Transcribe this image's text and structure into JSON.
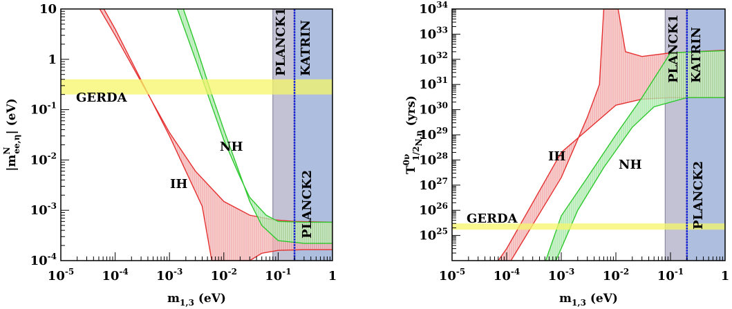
{
  "chart_data": [
    {
      "type": "area",
      "log_x": true,
      "log_y": true,
      "xlim": [
        1e-05,
        1
      ],
      "ylim": [
        0.0001,
        10
      ],
      "xlabel_main": "m",
      "xlabel_sub": "1,3",
      "xlabel_unit": " (eV)",
      "ylabel_main": "|m",
      "ylabel_sup": "N",
      "ylabel_sub": "ee,η",
      "ylabel_unit": "| (eV)",
      "x_ticks": [
        {
          "v": 1e-05,
          "base": "10",
          "exp": "-5"
        },
        {
          "v": 0.0001,
          "base": "10",
          "exp": "-4"
        },
        {
          "v": 0.001,
          "base": "10",
          "exp": "-3"
        },
        {
          "v": 0.01,
          "base": "10",
          "exp": "-2"
        },
        {
          "v": 0.1,
          "base": "10",
          "exp": "-1"
        },
        {
          "v": 1,
          "base": "1",
          "exp": ""
        }
      ],
      "y_ticks": [
        {
          "v": 0.0001,
          "base": "10",
          "exp": "-4"
        },
        {
          "v": 0.001,
          "base": "10",
          "exp": "-3"
        },
        {
          "v": 0.01,
          "base": "10",
          "exp": "-2"
        },
        {
          "v": 0.1,
          "base": "10",
          "exp": "-1"
        },
        {
          "v": 1,
          "base": "1",
          "exp": ""
        },
        {
          "v": 10,
          "base": "10",
          "exp": ""
        }
      ],
      "series": [
        {
          "name": "IH",
          "color": "#e53030",
          "fill": "#f2a3a3",
          "upper": [
            [
              5.2e-05,
              10
            ],
            [
              0.0001,
              3
            ],
            [
              0.001,
              0.035
            ],
            [
              0.003,
              0.006
            ],
            [
              0.01,
              0.0015
            ],
            [
              0.03,
              0.0008
            ],
            [
              0.08,
              0.00065
            ],
            [
              0.2,
              0.0006
            ],
            [
              1,
              0.00058
            ]
          ],
          "lower": [
            [
              6.2e-05,
              10
            ],
            [
              0.0001,
              4
            ],
            [
              0.001,
              0.03
            ],
            [
              0.002,
              0.006
            ],
            [
              0.004,
              0.0012
            ],
            [
              0.006,
              0.0001
            ],
            [
              0.03,
              0.0001
            ],
            [
              0.05,
              0.00014
            ],
            [
              0.1,
              0.00016
            ],
            [
              0.3,
              0.000165
            ],
            [
              1,
              0.000165
            ]
          ]
        },
        {
          "name": "NH",
          "color": "#2ec82e",
          "fill": "#a0e6a0",
          "upper": [
            [
              0.0014,
              10
            ],
            [
              0.003,
              1
            ],
            [
              0.01,
              0.025
            ],
            [
              0.02,
              0.0045
            ],
            [
              0.03,
              0.0018
            ],
            [
              0.06,
              0.0008
            ],
            [
              0.1,
              0.0006
            ],
            [
              0.3,
              0.00058
            ],
            [
              1,
              0.00058
            ]
          ],
          "lower": [
            [
              0.0018,
              10
            ],
            [
              0.003,
              2
            ],
            [
              0.006,
              0.2
            ],
            [
              0.01,
              0.04
            ],
            [
              0.03,
              0.0015
            ],
            [
              0.05,
              0.0005
            ],
            [
              0.1,
              0.00025
            ],
            [
              0.3,
              0.00022
            ],
            [
              1,
              0.00022
            ]
          ]
        }
      ],
      "bands": [
        {
          "name": "GERDA",
          "orientation": "horizontal",
          "range": [
            0.2,
            0.4
          ],
          "color": "#f5f56a"
        },
        {
          "name": "PLANCK1",
          "orientation": "vertical",
          "range": [
            0.08,
            1
          ],
          "color": "#b7b7cc"
        },
        {
          "name": "PLANCK2",
          "orientation": "vertical",
          "range": [
            0.2,
            1
          ],
          "color": "#a9bde0"
        },
        {
          "name": "KATRIN",
          "orientation": "vertical-line",
          "value": 0.2,
          "color": "#1e2ad6"
        }
      ],
      "labels": {
        "gerda": "GERDA",
        "planck1": "PLANCK1",
        "katrin": "KATRIN",
        "planck2": "PLANCK2",
        "ih": "IH",
        "nh": "NH"
      }
    },
    {
      "type": "area",
      "log_x": true,
      "log_y": true,
      "xlim": [
        1e-05,
        1
      ],
      "ylim": [
        1e+24,
        1e+34
      ],
      "xlabel_main": "m",
      "xlabel_sub": "1,3",
      "xlabel_unit": " (eV)",
      "ylabel_main": "T",
      "ylabel_sup": "0ν",
      "ylabel_sub": "1/2",
      "ylabel_sub2": "N,η",
      "ylabel_unit": " (yrs)",
      "x_ticks": [
        {
          "v": 1e-05,
          "base": "10",
          "exp": "-5"
        },
        {
          "v": 0.0001,
          "base": "10",
          "exp": "-4"
        },
        {
          "v": 0.001,
          "base": "10",
          "exp": "-3"
        },
        {
          "v": 0.01,
          "base": "10",
          "exp": "-2"
        },
        {
          "v": 0.1,
          "base": "10",
          "exp": "-1"
        },
        {
          "v": 1,
          "base": "1",
          "exp": ""
        }
      ],
      "y_ticks": [
        {
          "v": 1e+25,
          "base": "10",
          "exp": "25"
        },
        {
          "v": 1e+26,
          "base": "10",
          "exp": "26"
        },
        {
          "v": 1e+27,
          "base": "10",
          "exp": "27"
        },
        {
          "v": 1e+28,
          "base": "10",
          "exp": "28"
        },
        {
          "v": 1e+29,
          "base": "10",
          "exp": "29"
        },
        {
          "v": 1e+30,
          "base": "10",
          "exp": "30"
        },
        {
          "v": 1e+31,
          "base": "10",
          "exp": "31"
        },
        {
          "v": 1e+32,
          "base": "10",
          "exp": "32"
        },
        {
          "v": 1e+33,
          "base": "10",
          "exp": "33"
        },
        {
          "v": 1e+34,
          "base": "10",
          "exp": "34"
        }
      ],
      "series": [
        {
          "name": "IH",
          "color": "#e53030",
          "fill": "#f2a3a3",
          "upper": [
            [
              0.00012,
              1e+24
            ],
            [
              0.001,
              2e+27
            ],
            [
              0.003,
              5e+29
            ],
            [
              0.005,
              1e+31
            ],
            [
              0.006,
              1e+34
            ],
            [
              0.011,
              1e+34
            ],
            [
              0.015,
              2e+32
            ],
            [
              0.03,
              1.3e+32
            ],
            [
              0.1,
              1.8e+32
            ],
            [
              1,
              2.3e+32
            ]
          ],
          "lower": [
            [
              7e-05,
              1e+24
            ],
            [
              0.0001,
              3e+24
            ],
            [
              0.001,
              2e+28
            ],
            [
              0.01,
              1.5e+30
            ],
            [
              0.03,
              2.6e+30
            ],
            [
              0.1,
              3e+30
            ],
            [
              1,
              3e+30
            ]
          ]
        },
        {
          "name": "NH",
          "color": "#2ec82e",
          "fill": "#a0e6a0",
          "upper": [
            [
              0.00052,
              1e+24
            ],
            [
              0.001,
              6e+25
            ],
            [
              0.003,
              2e+27
            ],
            [
              0.01,
              1e+29
            ],
            [
              0.03,
              3e+30
            ],
            [
              0.1,
              1.8e+32
            ],
            [
              0.3,
              2e+32
            ],
            [
              1,
              2.2e+32
            ]
          ],
          "lower": [
            [
              0.0008,
              1e+24
            ],
            [
              0.002,
              1e+26
            ],
            [
              0.006,
              5e+27
            ],
            [
              0.02,
              2e+29
            ],
            [
              0.05,
              1.3e+30
            ],
            [
              0.2,
              3e+30
            ],
            [
              1,
              3e+30
            ]
          ]
        }
      ],
      "bands": [
        {
          "name": "GERDA",
          "orientation": "horizontal",
          "range": [
            1.7e+25,
            3e+25
          ],
          "color": "#f5f56a"
        },
        {
          "name": "PLANCK1",
          "orientation": "vertical",
          "range": [
            0.08,
            1
          ],
          "color": "#b7b7cc"
        },
        {
          "name": "PLANCK2",
          "orientation": "vertical",
          "range": [
            0.2,
            1
          ],
          "color": "#a9bde0"
        },
        {
          "name": "KATRIN",
          "orientation": "vertical-line",
          "value": 0.2,
          "color": "#1e2ad6"
        }
      ],
      "labels": {
        "gerda": "GERDA",
        "planck1": "PLANCK1",
        "katrin": "KATRIN",
        "planck2": "PLANCK2",
        "ih": "IH",
        "nh": "NH"
      }
    }
  ]
}
